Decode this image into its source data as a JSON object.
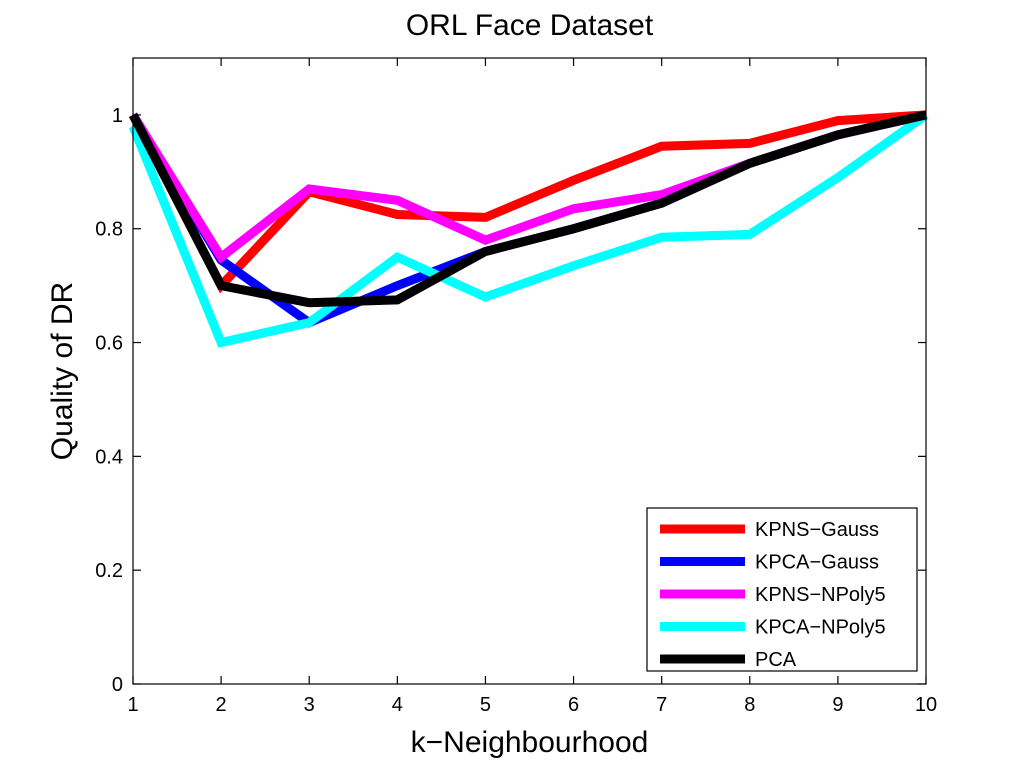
{
  "chart_data": {
    "type": "line",
    "title": "ORL Face Dataset",
    "xlabel": "k−Neighbourhood",
    "ylabel": "Quality of DR",
    "x": [
      1,
      2,
      3,
      4,
      5,
      6,
      7,
      8,
      9,
      10
    ],
    "xlim": [
      1,
      10
    ],
    "ylim": [
      0,
      1.1
    ],
    "xticks": [
      "1",
      "2",
      "3",
      "4",
      "5",
      "6",
      "7",
      "8",
      "9",
      "10"
    ],
    "yticks": [
      "0",
      "0.2",
      "0.4",
      "0.6",
      "0.8",
      "1"
    ],
    "grid": false,
    "legend_position": "bottom-right",
    "series": [
      {
        "name": "KPNS−Gauss",
        "color": "#ff0000",
        "values": [
          1.0,
          0.7,
          0.865,
          0.825,
          0.82,
          0.885,
          0.945,
          0.95,
          0.99,
          1.0
        ]
      },
      {
        "name": "KPCA−Gauss",
        "color": "#0000ff",
        "values": [
          1.0,
          0.745,
          0.635,
          0.7,
          0.76,
          0.8,
          0.845,
          0.915,
          0.965,
          1.0
        ]
      },
      {
        "name": "KPNS−NPoly5",
        "color": "#ff00ff",
        "values": [
          1.0,
          0.75,
          0.87,
          0.85,
          0.78,
          0.835,
          0.86,
          0.915,
          0.965,
          1.0
        ]
      },
      {
        "name": "KPCA−NPoly5",
        "color": "#00ffff",
        "values": [
          0.98,
          0.6,
          0.635,
          0.75,
          0.68,
          0.735,
          0.785,
          0.79,
          0.89,
          1.0
        ]
      },
      {
        "name": "PCA",
        "color": "#000000",
        "values": [
          1.0,
          0.7,
          0.67,
          0.675,
          0.76,
          0.8,
          0.845,
          0.915,
          0.965,
          1.0
        ]
      }
    ]
  }
}
